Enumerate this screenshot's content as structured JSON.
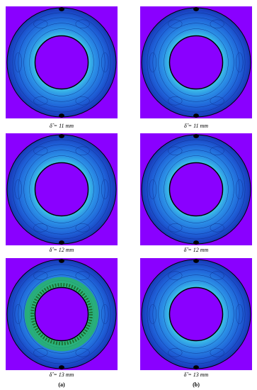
{
  "figure": {
    "panels": [
      {
        "caption": "δ̂ = 11 mm"
      },
      {
        "caption": "δ̂ = 11 mm"
      },
      {
        "caption": "δ̂ = 12 mm"
      },
      {
        "caption": "δ̂ = 12 mm"
      },
      {
        "caption": "δ̂ = 13 mm"
      },
      {
        "caption": "δ̂ = 13 mm"
      }
    ],
    "column_labels": [
      "(a)",
      "(b)"
    ]
  }
}
